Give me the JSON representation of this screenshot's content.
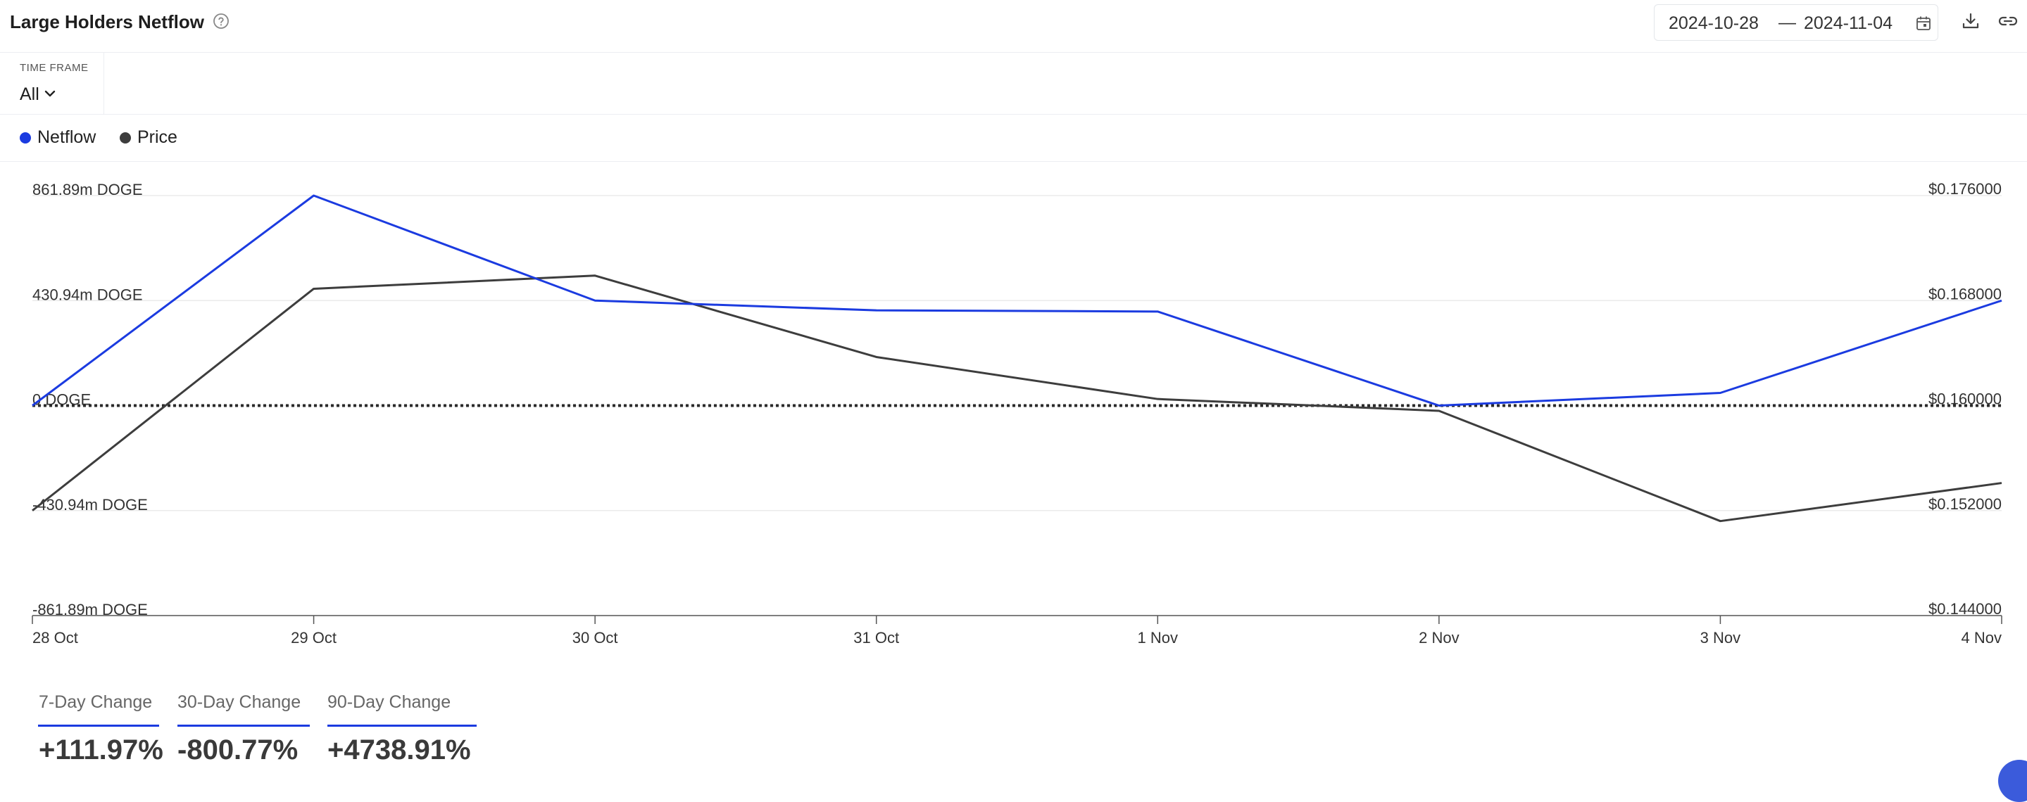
{
  "header": {
    "title": "Large Holders Netflow",
    "date_start": "2024-10-28",
    "date_sep": "—",
    "date_end": "2024-11-04"
  },
  "timeframe": {
    "label": "TIME FRAME",
    "value": "All"
  },
  "legend": [
    {
      "label": "Netflow",
      "color": "#1b3be0"
    },
    {
      "label": "Price",
      "color": "#3d3d3d"
    }
  ],
  "changes": [
    {
      "label": "7-Day Change",
      "value": "+111.97%"
    },
    {
      "label": "30-Day Change",
      "value": "-800.77%"
    },
    {
      "label": "90-Day Change",
      "value": "+4738.91%"
    }
  ],
  "chart_data": {
    "type": "line",
    "categories": [
      "28 Oct",
      "29 Oct",
      "30 Oct",
      "31 Oct",
      "1 Nov",
      "2 Nov",
      "3 Nov",
      "4 Nov"
    ],
    "series": [
      {
        "name": "Netflow",
        "axis": "left",
        "color": "#1b3be0",
        "values": [
          0,
          861.89,
          430.94,
          391,
          386,
          0,
          52,
          430.94
        ]
      },
      {
        "name": "Price",
        "axis": "right",
        "color": "#3d3d3d",
        "values": [
          0.152,
          0.1689,
          0.1699,
          0.1637,
          0.1605,
          0.1596,
          0.1512,
          0.1541
        ]
      }
    ],
    "left_axis": {
      "ylim": [
        -861.89,
        861.89
      ],
      "tick_labels": [
        "861.89m DOGE",
        "430.94m DOGE",
        "0 DOGE",
        "-430.94m DOGE",
        "-861.89m DOGE"
      ]
    },
    "right_axis": {
      "ylim": [
        0.144,
        0.176
      ],
      "tick_labels": [
        "$0.176000",
        "$0.168000",
        "$0.160000",
        "$0.152000",
        "$0.144000"
      ]
    },
    "zero_line": "dotted",
    "grid": true,
    "legend_position": "top-left"
  }
}
